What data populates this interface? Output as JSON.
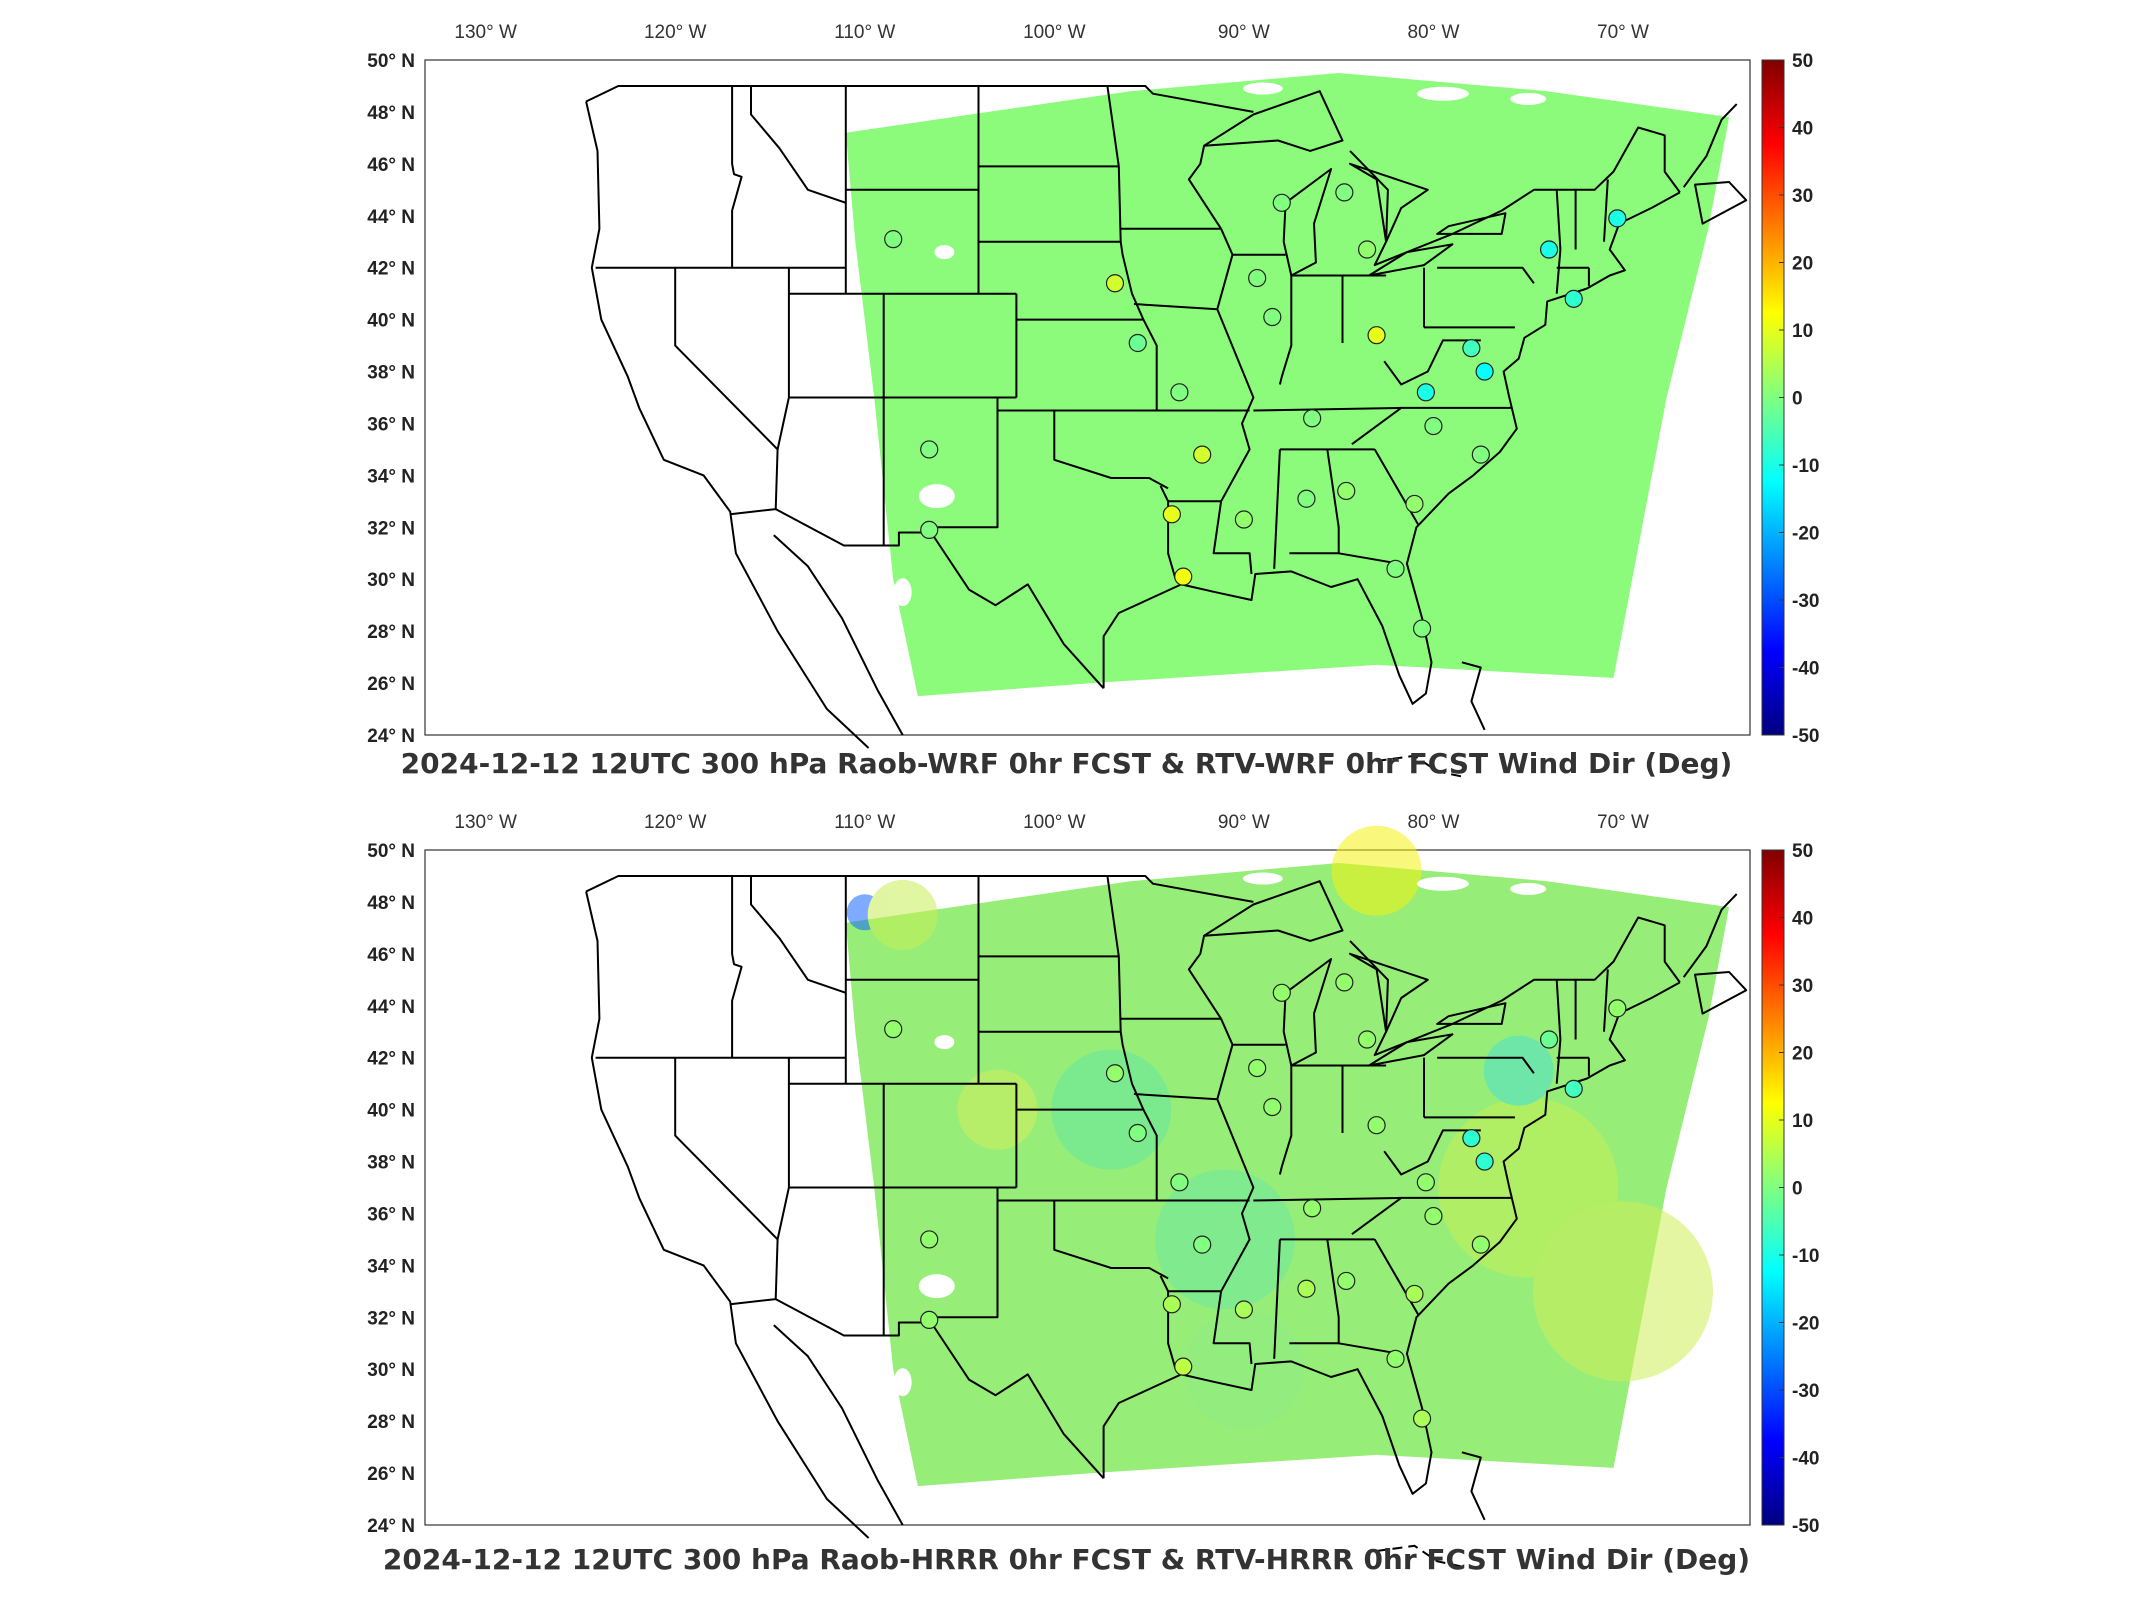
{
  "colorbar": {
    "ticks": [
      "50",
      "40",
      "30",
      "20",
      "10",
      "0",
      "-10",
      "-20",
      "-30",
      "-40",
      "-50"
    ],
    "colors": [
      "#800000",
      "#ff0000",
      "#ff8000",
      "#ffff00",
      "#80ff80",
      "#00ffff",
      "#0080ff",
      "#0000ff",
      "#000080"
    ]
  },
  "axes": {
    "lon_labels": [
      "130° W",
      "120° W",
      "110° W",
      "100° W",
      "90° W",
      "80° W",
      "70° W"
    ],
    "lat_labels": [
      "50° N",
      "48° N",
      "46° N",
      "44° N",
      "42° N",
      "40° N",
      "38° N",
      "36° N",
      "34° N",
      "32° N",
      "30° N",
      "28° N",
      "26° N",
      "24° N"
    ]
  },
  "panels": [
    {
      "title": "2024-12-12 12UTC 300 hPa Raob-WRF 0hr FCST & RTV-WRF 0hr FCST Wind Dir (Deg)",
      "field_color": "#8cfb7c",
      "stations": [
        {
          "lon": -108.5,
          "lat": 43.1,
          "value": 0
        },
        {
          "lon": -96.8,
          "lat": 41.4,
          "value": 8
        },
        {
          "lon": -95.6,
          "lat": 39.1,
          "value": -2
        },
        {
          "lon": -93.4,
          "lat": 37.2,
          "value": 0
        },
        {
          "lon": -92.2,
          "lat": 34.8,
          "value": 8
        },
        {
          "lon": -93.8,
          "lat": 32.5,
          "value": 10
        },
        {
          "lon": -93.2,
          "lat": 30.1,
          "value": 11
        },
        {
          "lon": -90.0,
          "lat": 32.3,
          "value": 2
        },
        {
          "lon": -86.7,
          "lat": 33.1,
          "value": 0
        },
        {
          "lon": -84.6,
          "lat": 33.4,
          "value": 2
        },
        {
          "lon": -81.0,
          "lat": 32.9,
          "value": 2
        },
        {
          "lon": -80.6,
          "lat": 28.1,
          "value": 0
        },
        {
          "lon": -82.0,
          "lat": 30.4,
          "value": 0
        },
        {
          "lon": -77.5,
          "lat": 34.8,
          "value": 0
        },
        {
          "lon": -80.0,
          "lat": 35.9,
          "value": 0
        },
        {
          "lon": -80.4,
          "lat": 37.2,
          "value": -10
        },
        {
          "lon": -77.3,
          "lat": 38.0,
          "value": -12
        },
        {
          "lon": -78.0,
          "lat": 38.9,
          "value": -6
        },
        {
          "lon": -83.0,
          "lat": 39.4,
          "value": 10
        },
        {
          "lon": -86.4,
          "lat": 36.2,
          "value": 0
        },
        {
          "lon": -88.5,
          "lat": 40.1,
          "value": 0
        },
        {
          "lon": -89.3,
          "lat": 41.6,
          "value": 0
        },
        {
          "lon": -88.0,
          "lat": 44.5,
          "value": 0
        },
        {
          "lon": -84.7,
          "lat": 44.9,
          "value": 0
        },
        {
          "lon": -83.5,
          "lat": 42.7,
          "value": 2
        },
        {
          "lon": -73.9,
          "lat": 42.7,
          "value": -10
        },
        {
          "lon": -72.6,
          "lat": 40.8,
          "value": -8
        },
        {
          "lon": -70.3,
          "lat": 43.9,
          "value": -10
        },
        {
          "lon": -106.6,
          "lat": 35.0,
          "value": 0
        },
        {
          "lon": -106.6,
          "lat": 31.9,
          "value": 0
        }
      ]
    },
    {
      "title": "2024-12-12 12UTC 300 hPa Raob-HRRR 0hr FCST & RTV-HRRR 0hr FCST Wind Dir (Deg)",
      "field_color": "#96ee78",
      "stations": [
        {
          "lon": -108.5,
          "lat": 43.1,
          "value": 2
        },
        {
          "lon": -96.8,
          "lat": 41.4,
          "value": 2
        },
        {
          "lon": -95.6,
          "lat": 39.1,
          "value": 0
        },
        {
          "lon": -93.4,
          "lat": 37.2,
          "value": 0
        },
        {
          "lon": -92.2,
          "lat": 34.8,
          "value": 0
        },
        {
          "lon": -93.8,
          "lat": 32.5,
          "value": 4
        },
        {
          "lon": -93.2,
          "lat": 30.1,
          "value": 6
        },
        {
          "lon": -90.0,
          "lat": 32.3,
          "value": 4
        },
        {
          "lon": -86.7,
          "lat": 33.1,
          "value": 4
        },
        {
          "lon": -84.6,
          "lat": 33.4,
          "value": 2
        },
        {
          "lon": -81.0,
          "lat": 32.9,
          "value": 4
        },
        {
          "lon": -80.6,
          "lat": 28.1,
          "value": 4
        },
        {
          "lon": -82.0,
          "lat": 30.4,
          "value": 2
        },
        {
          "lon": -77.5,
          "lat": 34.8,
          "value": 2
        },
        {
          "lon": -80.0,
          "lat": 35.9,
          "value": 2
        },
        {
          "lon": -80.4,
          "lat": 37.2,
          "value": 2
        },
        {
          "lon": -77.3,
          "lat": 38.0,
          "value": -8
        },
        {
          "lon": -78.0,
          "lat": 38.9,
          "value": -8
        },
        {
          "lon": -83.0,
          "lat": 39.4,
          "value": 2
        },
        {
          "lon": -86.4,
          "lat": 36.2,
          "value": 2
        },
        {
          "lon": -88.5,
          "lat": 40.1,
          "value": 2
        },
        {
          "lon": -89.3,
          "lat": 41.6,
          "value": 2
        },
        {
          "lon": -88.0,
          "lat": 44.5,
          "value": 2
        },
        {
          "lon": -84.7,
          "lat": 44.9,
          "value": 2
        },
        {
          "lon": -83.5,
          "lat": 42.7,
          "value": 2
        },
        {
          "lon": -73.9,
          "lat": 42.7,
          "value": -2
        },
        {
          "lon": -72.6,
          "lat": 40.8,
          "value": -6
        },
        {
          "lon": -70.3,
          "lat": 43.9,
          "value": 2
        },
        {
          "lon": -106.6,
          "lat": 35.0,
          "value": 2
        },
        {
          "lon": -106.6,
          "lat": 31.9,
          "value": 2
        }
      ]
    }
  ]
}
